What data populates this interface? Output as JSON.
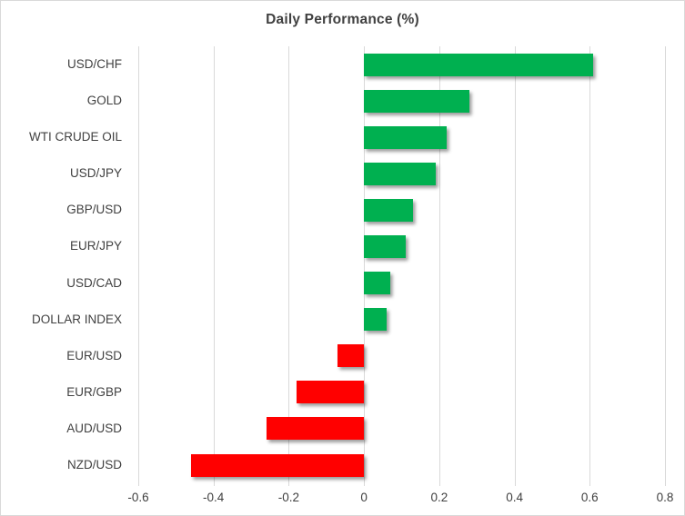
{
  "chart_data": {
    "type": "bar",
    "orientation": "horizontal",
    "title": "Daily Performance (%)",
    "categories": [
      "USD/CHF",
      "GOLD",
      "WTI CRUDE OIL",
      "USD/JPY",
      "GBP/USD",
      "EUR/JPY",
      "USD/CAD",
      "DOLLAR INDEX",
      "EUR/USD",
      "EUR/GBP",
      "AUD/USD",
      "NZD/USD"
    ],
    "values": [
      0.61,
      0.28,
      0.22,
      0.19,
      0.13,
      0.11,
      0.07,
      0.06,
      -0.07,
      -0.18,
      -0.26,
      -0.46
    ],
    "xlim": [
      -0.6,
      0.8
    ],
    "x_ticks": [
      -0.6,
      -0.4,
      -0.2,
      0,
      0.2,
      0.4,
      0.6,
      0.8
    ],
    "x_tick_labels": [
      "-0.6",
      "-0.4",
      "-0.2",
      "0",
      "0.2",
      "0.4",
      "0.6",
      "0.8"
    ],
    "grid": true,
    "legend_position": "none",
    "xlabel": "",
    "ylabel": "",
    "colors": {
      "positive_bar": "#00b050",
      "negative_bar": "#ff0000",
      "gridline": "#d9d9d9",
      "text": "#404040",
      "chart_border": "#d9d9d9",
      "background": "#ffffff"
    }
  }
}
